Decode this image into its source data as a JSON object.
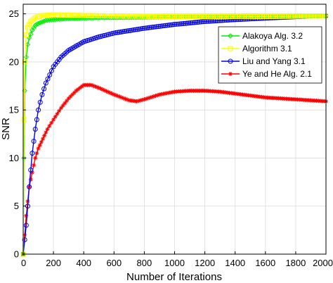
{
  "chart_data": {
    "type": "line",
    "title": "",
    "xlabel": "Number of Iterations",
    "ylabel": "SNR",
    "xlim": [
      0,
      2000
    ],
    "ylim": [
      0,
      26
    ],
    "xticks": [
      0,
      200,
      400,
      600,
      800,
      1000,
      1200,
      1400,
      1600,
      1800,
      2000
    ],
    "yticks": [
      0,
      5,
      10,
      15,
      20,
      25
    ],
    "grid": true,
    "legend": "upper right",
    "series": [
      {
        "name": "Alakoya Alg. 3.2",
        "color": "#00ee00",
        "marker": "diamond",
        "x": [
          0,
          5,
          10,
          20,
          30,
          40,
          60,
          80,
          100,
          150,
          200,
          300,
          500,
          800,
          1000,
          1200,
          1500,
          1800,
          2000
        ],
        "y": [
          0,
          10,
          17,
          20.5,
          21.8,
          22.5,
          23.3,
          23.8,
          24.0,
          24.3,
          24.4,
          24.5,
          24.6,
          24.65,
          24.7,
          24.72,
          24.75,
          24.78,
          24.8
        ]
      },
      {
        "name": "Algorithm 3.1",
        "color": "#ffff00",
        "marker": "square",
        "x": [
          0,
          5,
          10,
          20,
          30,
          50,
          80,
          120,
          200,
          300,
          500,
          800,
          1000,
          1200,
          1500,
          1800,
          2000
        ],
        "y": [
          0,
          14,
          20,
          22.8,
          23.6,
          24.2,
          24.6,
          24.8,
          24.9,
          24.85,
          24.8,
          24.75,
          24.7,
          24.7,
          24.72,
          24.75,
          24.78
        ]
      },
      {
        "name": "Liu and Yang 3.1",
        "color": "#0000ee",
        "marker": "circle",
        "x": [
          0,
          20,
          40,
          60,
          80,
          100,
          125,
          150,
          200,
          250,
          300,
          400,
          500,
          600,
          800,
          1000,
          1200,
          1400,
          1600,
          1800,
          2000
        ],
        "y": [
          0,
          3,
          7,
          10.5,
          13,
          15,
          16.6,
          17.8,
          19.5,
          20.5,
          21.2,
          22.1,
          22.6,
          23.0,
          23.5,
          23.9,
          24.2,
          24.4,
          24.55,
          24.7,
          24.8
        ]
      },
      {
        "name": "Ye and He Alg. 2.1",
        "color": "#ff0000",
        "marker": "asterisk",
        "x": [
          0,
          20,
          40,
          60,
          80,
          100,
          130,
          160,
          200,
          250,
          300,
          350,
          400,
          450,
          500,
          600,
          700,
          750,
          800,
          900,
          1000,
          1100,
          1200,
          1300,
          1400,
          1500,
          1600,
          1700,
          1800,
          1900,
          2000
        ],
        "y": [
          0,
          4,
          7,
          8.5,
          10,
          11,
          12,
          13,
          14,
          15.2,
          16.2,
          17,
          17.6,
          17.6,
          17.3,
          16.6,
          16.0,
          15.9,
          16.1,
          16.6,
          16.9,
          17.0,
          17.0,
          16.9,
          16.7,
          16.5,
          16.3,
          16.2,
          16.1,
          16.0,
          15.9
        ]
      }
    ]
  }
}
